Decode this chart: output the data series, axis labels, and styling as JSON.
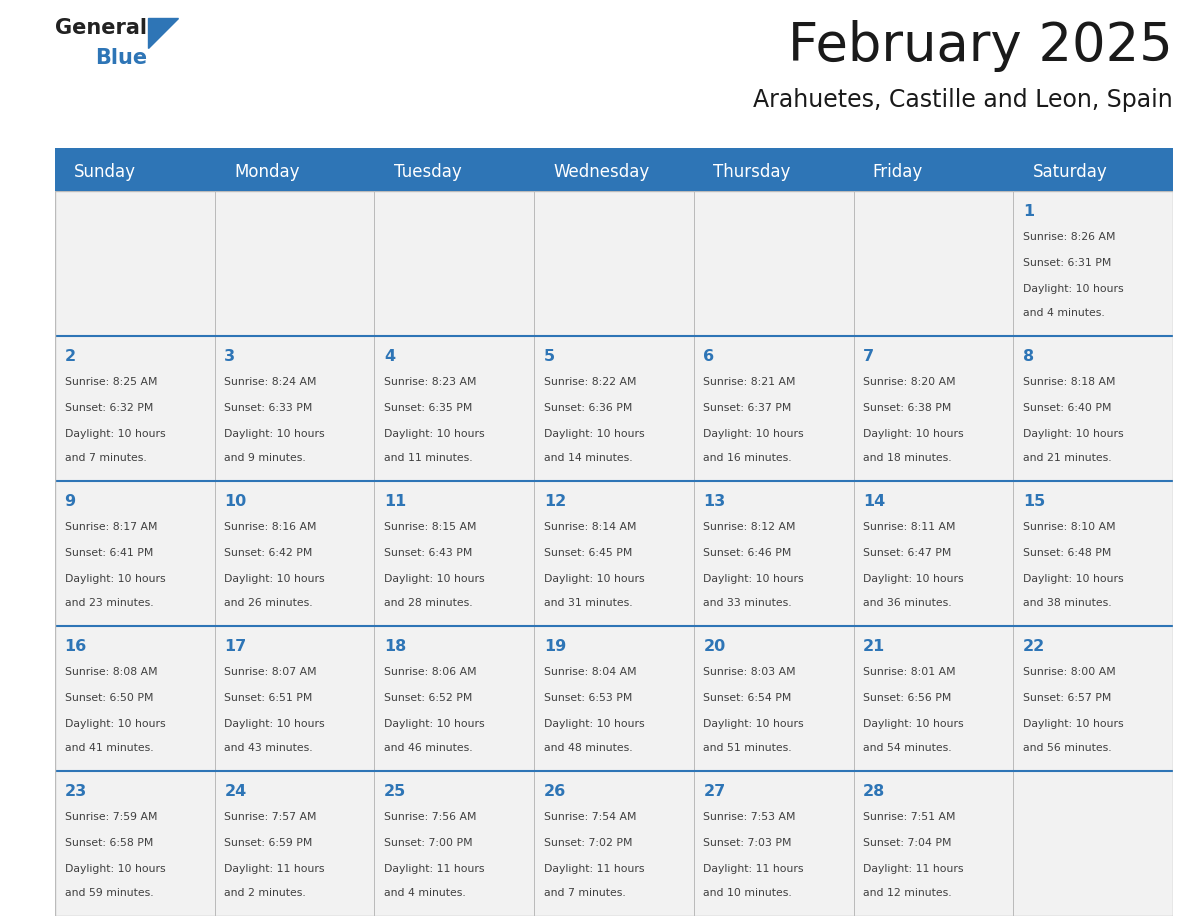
{
  "title": "February 2025",
  "subtitle": "Arahuetes, Castille and Leon, Spain",
  "header_bg": "#2E75B6",
  "header_text_color": "#FFFFFF",
  "cell_bg": "#F2F2F2",
  "day_number_color": "#2E75B6",
  "text_color": "#404040",
  "border_color": "#BBBBBB",
  "days_of_week": [
    "Sunday",
    "Monday",
    "Tuesday",
    "Wednesday",
    "Thursday",
    "Friday",
    "Saturday"
  ],
  "calendar_data": [
    [
      null,
      null,
      null,
      null,
      null,
      null,
      {
        "day": "1",
        "sunrise": "8:26 AM",
        "sunset": "6:31 PM",
        "daylight_line1": "Daylight: 10 hours",
        "daylight_line2": "and 4 minutes."
      }
    ],
    [
      {
        "day": "2",
        "sunrise": "8:25 AM",
        "sunset": "6:32 PM",
        "daylight_line1": "Daylight: 10 hours",
        "daylight_line2": "and 7 minutes."
      },
      {
        "day": "3",
        "sunrise": "8:24 AM",
        "sunset": "6:33 PM",
        "daylight_line1": "Daylight: 10 hours",
        "daylight_line2": "and 9 minutes."
      },
      {
        "day": "4",
        "sunrise": "8:23 AM",
        "sunset": "6:35 PM",
        "daylight_line1": "Daylight: 10 hours",
        "daylight_line2": "and 11 minutes."
      },
      {
        "day": "5",
        "sunrise": "8:22 AM",
        "sunset": "6:36 PM",
        "daylight_line1": "Daylight: 10 hours",
        "daylight_line2": "and 14 minutes."
      },
      {
        "day": "6",
        "sunrise": "8:21 AM",
        "sunset": "6:37 PM",
        "daylight_line1": "Daylight: 10 hours",
        "daylight_line2": "and 16 minutes."
      },
      {
        "day": "7",
        "sunrise": "8:20 AM",
        "sunset": "6:38 PM",
        "daylight_line1": "Daylight: 10 hours",
        "daylight_line2": "and 18 minutes."
      },
      {
        "day": "8",
        "sunrise": "8:18 AM",
        "sunset": "6:40 PM",
        "daylight_line1": "Daylight: 10 hours",
        "daylight_line2": "and 21 minutes."
      }
    ],
    [
      {
        "day": "9",
        "sunrise": "8:17 AM",
        "sunset": "6:41 PM",
        "daylight_line1": "Daylight: 10 hours",
        "daylight_line2": "and 23 minutes."
      },
      {
        "day": "10",
        "sunrise": "8:16 AM",
        "sunset": "6:42 PM",
        "daylight_line1": "Daylight: 10 hours",
        "daylight_line2": "and 26 minutes."
      },
      {
        "day": "11",
        "sunrise": "8:15 AM",
        "sunset": "6:43 PM",
        "daylight_line1": "Daylight: 10 hours",
        "daylight_line2": "and 28 minutes."
      },
      {
        "day": "12",
        "sunrise": "8:14 AM",
        "sunset": "6:45 PM",
        "daylight_line1": "Daylight: 10 hours",
        "daylight_line2": "and 31 minutes."
      },
      {
        "day": "13",
        "sunrise": "8:12 AM",
        "sunset": "6:46 PM",
        "daylight_line1": "Daylight: 10 hours",
        "daylight_line2": "and 33 minutes."
      },
      {
        "day": "14",
        "sunrise": "8:11 AM",
        "sunset": "6:47 PM",
        "daylight_line1": "Daylight: 10 hours",
        "daylight_line2": "and 36 minutes."
      },
      {
        "day": "15",
        "sunrise": "8:10 AM",
        "sunset": "6:48 PM",
        "daylight_line1": "Daylight: 10 hours",
        "daylight_line2": "and 38 minutes."
      }
    ],
    [
      {
        "day": "16",
        "sunrise": "8:08 AM",
        "sunset": "6:50 PM",
        "daylight_line1": "Daylight: 10 hours",
        "daylight_line2": "and 41 minutes."
      },
      {
        "day": "17",
        "sunrise": "8:07 AM",
        "sunset": "6:51 PM",
        "daylight_line1": "Daylight: 10 hours",
        "daylight_line2": "and 43 minutes."
      },
      {
        "day": "18",
        "sunrise": "8:06 AM",
        "sunset": "6:52 PM",
        "daylight_line1": "Daylight: 10 hours",
        "daylight_line2": "and 46 minutes."
      },
      {
        "day": "19",
        "sunrise": "8:04 AM",
        "sunset": "6:53 PM",
        "daylight_line1": "Daylight: 10 hours",
        "daylight_line2": "and 48 minutes."
      },
      {
        "day": "20",
        "sunrise": "8:03 AM",
        "sunset": "6:54 PM",
        "daylight_line1": "Daylight: 10 hours",
        "daylight_line2": "and 51 minutes."
      },
      {
        "day": "21",
        "sunrise": "8:01 AM",
        "sunset": "6:56 PM",
        "daylight_line1": "Daylight: 10 hours",
        "daylight_line2": "and 54 minutes."
      },
      {
        "day": "22",
        "sunrise": "8:00 AM",
        "sunset": "6:57 PM",
        "daylight_line1": "Daylight: 10 hours",
        "daylight_line2": "and 56 minutes."
      }
    ],
    [
      {
        "day": "23",
        "sunrise": "7:59 AM",
        "sunset": "6:58 PM",
        "daylight_line1": "Daylight: 10 hours",
        "daylight_line2": "and 59 minutes."
      },
      {
        "day": "24",
        "sunrise": "7:57 AM",
        "sunset": "6:59 PM",
        "daylight_line1": "Daylight: 11 hours",
        "daylight_line2": "and 2 minutes."
      },
      {
        "day": "25",
        "sunrise": "7:56 AM",
        "sunset": "7:00 PM",
        "daylight_line1": "Daylight: 11 hours",
        "daylight_line2": "and 4 minutes."
      },
      {
        "day": "26",
        "sunrise": "7:54 AM",
        "sunset": "7:02 PM",
        "daylight_line1": "Daylight: 11 hours",
        "daylight_line2": "and 7 minutes."
      },
      {
        "day": "27",
        "sunrise": "7:53 AM",
        "sunset": "7:03 PM",
        "daylight_line1": "Daylight: 11 hours",
        "daylight_line2": "and 10 minutes."
      },
      {
        "day": "28",
        "sunrise": "7:51 AM",
        "sunset": "7:04 PM",
        "daylight_line1": "Daylight: 11 hours",
        "daylight_line2": "and 12 minutes."
      },
      null
    ]
  ]
}
